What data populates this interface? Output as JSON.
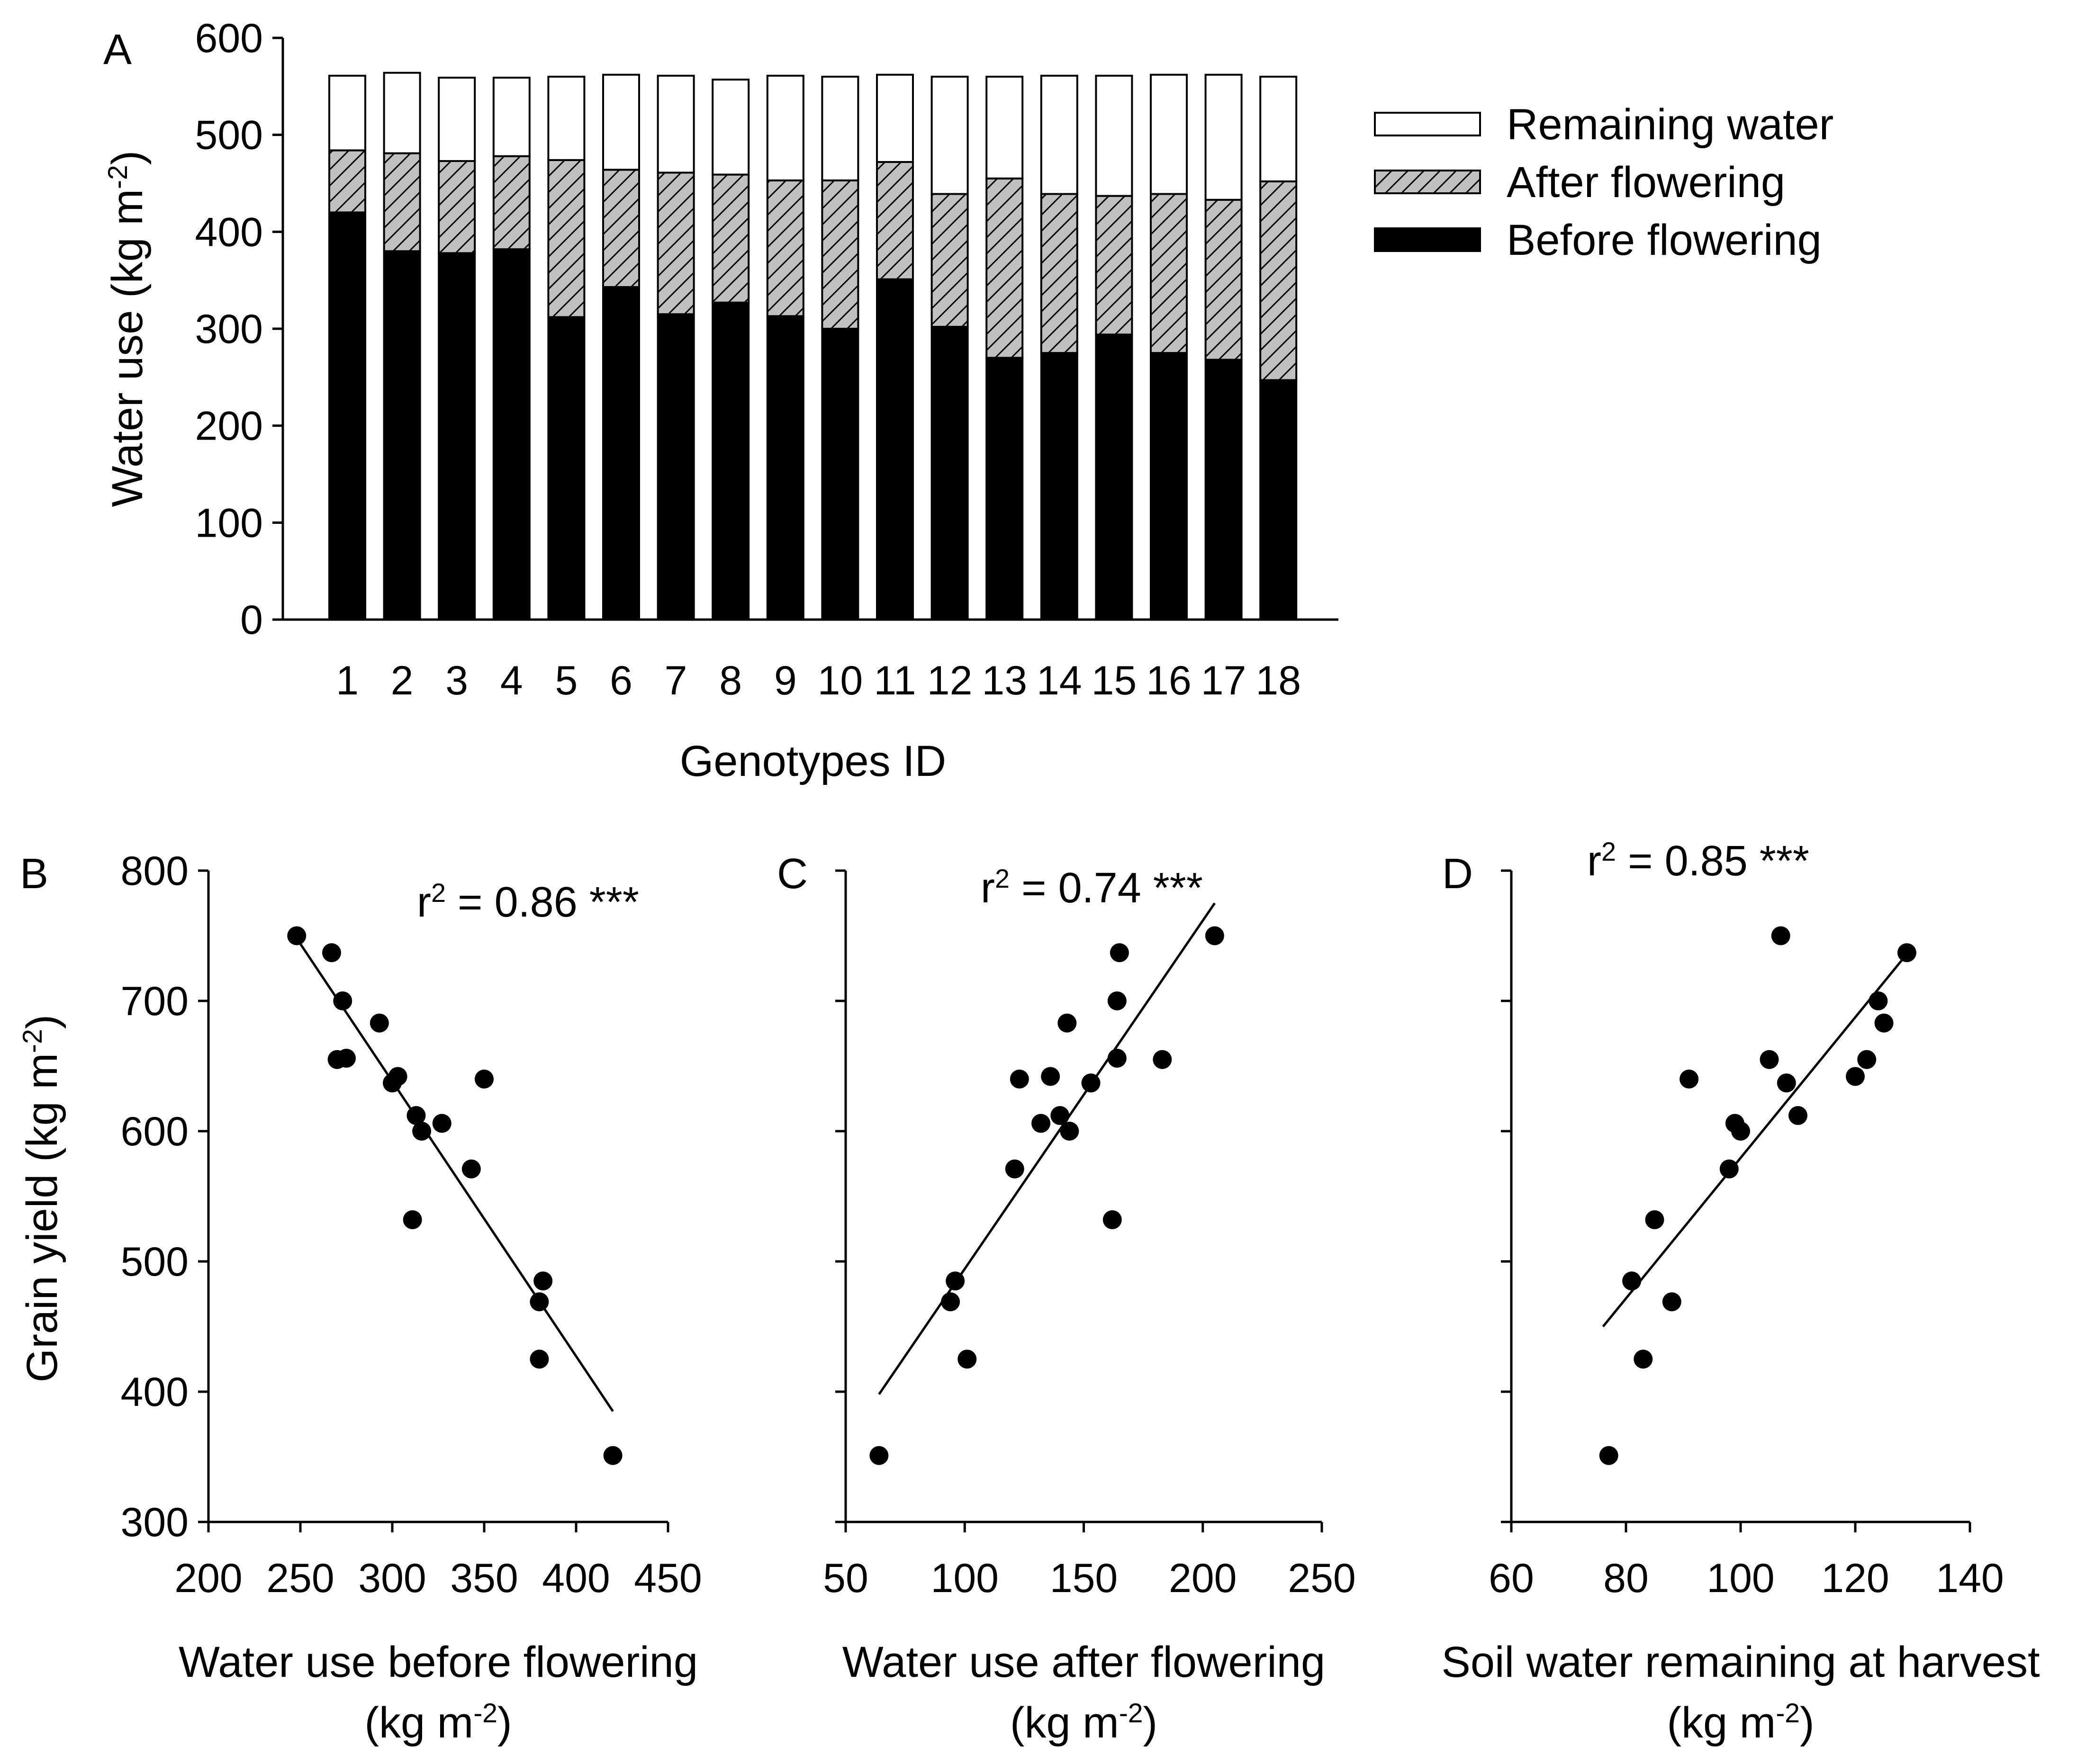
{
  "colors": {
    "black": "#000000",
    "white": "#ffffff",
    "hatch_fill": "#c0c0c0"
  },
  "chart_data": [
    {
      "panel": "A",
      "type": "bar",
      "stacked": true,
      "ylabel_main": "Water use (kg m",
      "ylabel_sup": "-2",
      "ylabel_tail": ")",
      "xlabel": "Genotypes ID",
      "ylim": [
        0,
        600
      ],
      "yticks": [
        0,
        100,
        200,
        300,
        400,
        500,
        600
      ],
      "categories": [
        "1",
        "2",
        "3",
        "4",
        "5",
        "6",
        "7",
        "8",
        "9",
        "10",
        "11",
        "12",
        "13",
        "14",
        "15",
        "16",
        "17",
        "18"
      ],
      "legend_position": "right",
      "series": [
        {
          "name": "Before flowering",
          "fill": "black",
          "values": [
            420,
            380,
            378,
            382,
            312,
            343,
            315,
            327,
            313,
            300,
            351,
            302,
            270,
            275,
            294,
            275,
            268,
            247
          ]
        },
        {
          "name": "After flowering",
          "fill": "hatch",
          "values": [
            64,
            101,
            95,
            96,
            162,
            121,
            146,
            132,
            140,
            153,
            121,
            137,
            185,
            164,
            143,
            164,
            165,
            205
          ]
        },
        {
          "name": "Remaining water",
          "fill": "white",
          "values": [
            77,
            83,
            86,
            81,
            86,
            98,
            100,
            98,
            108,
            107,
            90,
            121,
            105,
            122,
            124,
            123,
            129,
            108
          ]
        }
      ],
      "legend_order": [
        "Remaining water",
        "After flowering",
        "Before flowering"
      ]
    },
    {
      "panel": "B",
      "type": "scatter",
      "xlabel_line1": "Water use before flowering",
      "xlabel_line2_main": "(kg m",
      "xlabel_line2_sup": "-2",
      "xlabel_line2_tail": ")",
      "ylabel_main": "Grain yield (kg m",
      "ylabel_sup": "-2",
      "ylabel_tail": ")",
      "xlim": [
        200,
        450
      ],
      "ylim": [
        300,
        800
      ],
      "xticks": [
        200,
        250,
        300,
        350,
        400,
        450
      ],
      "yticks": [
        300,
        400,
        500,
        600,
        700,
        800
      ],
      "annotation": {
        "main": "r",
        "sup": "2",
        "tail": " = 0.86 ***"
      },
      "points": [
        [
          248,
          750
        ],
        [
          267,
          737
        ],
        [
          270,
          655
        ],
        [
          273,
          700
        ],
        [
          275,
          656
        ],
        [
          293,
          683
        ],
        [
          300,
          637
        ],
        [
          303,
          642
        ],
        [
          313,
          612
        ],
        [
          316,
          600
        ],
        [
          327,
          606
        ],
        [
          311,
          532
        ],
        [
          343,
          571
        ],
        [
          350,
          640
        ],
        [
          380,
          469
        ],
        [
          382,
          485
        ],
        [
          380,
          425
        ],
        [
          420,
          351
        ]
      ],
      "fit_line": [
        [
          248,
          748
        ],
        [
          420,
          385
        ]
      ]
    },
    {
      "panel": "C",
      "type": "scatter",
      "xlabel_line1": "Water use after flowering",
      "xlabel_line2_main": "(kg m",
      "xlabel_line2_sup": "-2",
      "xlabel_line2_tail": ")",
      "xlim": [
        50,
        250
      ],
      "ylim": [
        300,
        800
      ],
      "xticks": [
        50,
        100,
        150,
        200,
        250
      ],
      "yticks": [
        300,
        400,
        500,
        600,
        700,
        800
      ],
      "annotation": {
        "main": "r",
        "sup": "2",
        "tail": " = 0.74 ***"
      },
      "points": [
        [
          64,
          351
        ],
        [
          94,
          469
        ],
        [
          96,
          485
        ],
        [
          101,
          425
        ],
        [
          121,
          571
        ],
        [
          123,
          640
        ],
        [
          132,
          606
        ],
        [
          136,
          642
        ],
        [
          140,
          612
        ],
        [
          143,
          683
        ],
        [
          144,
          600
        ],
        [
          153,
          637
        ],
        [
          162,
          532
        ],
        [
          164,
          656
        ],
        [
          164,
          700
        ],
        [
          165,
          737
        ],
        [
          183,
          655
        ],
        [
          205,
          750
        ]
      ],
      "fit_line": [
        [
          64,
          398
        ],
        [
          205,
          775
        ]
      ]
    },
    {
      "panel": "D",
      "type": "scatter",
      "xlabel_line1": "Soil water remaining at harvest",
      "xlabel_line2_main": "(kg m",
      "xlabel_line2_sup": "-2",
      "xlabel_line2_tail": ")",
      "xlim": [
        60,
        140
      ],
      "ylim": [
        300,
        800
      ],
      "xticks": [
        60,
        80,
        100,
        120,
        140
      ],
      "yticks": [
        300,
        400,
        500,
        600,
        700,
        800
      ],
      "annotation": {
        "main": "r",
        "sup": "2",
        "tail": " = 0.85 ***"
      },
      "points": [
        [
          77,
          351
        ],
        [
          81,
          485
        ],
        [
          83,
          425
        ],
        [
          85,
          532
        ],
        [
          88,
          469
        ],
        [
          91,
          640
        ],
        [
          98,
          571
        ],
        [
          99,
          606
        ],
        [
          100,
          600
        ],
        [
          105,
          655
        ],
        [
          107,
          750
        ],
        [
          108,
          637
        ],
        [
          110,
          612
        ],
        [
          120,
          642
        ],
        [
          122,
          655
        ],
        [
          124,
          700
        ],
        [
          125,
          683
        ],
        [
          129,
          737
        ]
      ],
      "fit_line": [
        [
          76,
          450
        ],
        [
          129,
          736
        ]
      ]
    }
  ]
}
